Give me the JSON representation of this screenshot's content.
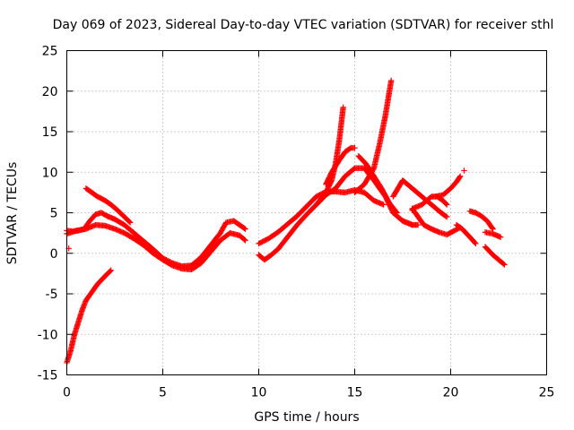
{
  "chart_data": {
    "type": "scatter",
    "title": "Day 069 of 2023, Sidereal Day-to-day VTEC variation (SDTVAR) for receiver sthl",
    "xlabel": "GPS time / hours",
    "ylabel": "SDTVAR / TECUs",
    "xlim": [
      0,
      25
    ],
    "ylim": [
      -15,
      25
    ],
    "xticks": [
      "0",
      "5",
      "10",
      "15",
      "20",
      "25"
    ],
    "yticks": [
      "25",
      "20",
      "15",
      "10",
      "5",
      "0",
      "-5",
      "-10",
      "-15"
    ],
    "xtick_values": [
      0,
      5,
      10,
      15,
      20,
      25
    ],
    "ytick_values": [
      25,
      20,
      15,
      10,
      5,
      0,
      -5,
      -10,
      -15
    ],
    "grid": true,
    "marker": "+",
    "series": [
      {
        "name": "SDTVAR",
        "color": "#ff0000",
        "tracks": [
          [
            [
              0.0,
              -13.5
            ],
            [
              0.2,
              -12.0
            ],
            [
              0.4,
              -10.0
            ],
            [
              0.6,
              -8.5
            ],
            [
              0.8,
              -7.0
            ],
            [
              1.0,
              -5.8
            ],
            [
              1.3,
              -4.8
            ],
            [
              1.6,
              -3.8
            ],
            [
              2.0,
              -2.8
            ],
            [
              2.3,
              -2.1
            ]
          ],
          [
            [
              0.0,
              2.8
            ],
            [
              0.3,
              2.7
            ],
            [
              0.6,
              2.8
            ],
            [
              0.9,
              3.0
            ],
            [
              1.2,
              4.0
            ],
            [
              1.5,
              4.8
            ],
            [
              1.8,
              5.0
            ],
            [
              2.1,
              4.6
            ],
            [
              2.5,
              4.2
            ],
            [
              3.0,
              3.5
            ],
            [
              3.5,
              2.5
            ],
            [
              4.0,
              1.5
            ],
            [
              4.5,
              0.5
            ],
            [
              5.0,
              -0.6
            ],
            [
              5.5,
              -1.2
            ],
            [
              6.0,
              -1.6
            ],
            [
              6.5,
              -1.5
            ],
            [
              7.0,
              -0.5
            ],
            [
              7.5,
              1.0
            ],
            [
              8.0,
              2.5
            ],
            [
              8.3,
              3.8
            ],
            [
              8.7,
              4.0
            ],
            [
              9.0,
              3.5
            ],
            [
              9.3,
              3.0
            ]
          ],
          [
            [
              0.0,
              2.4
            ],
            [
              0.5,
              2.8
            ],
            [
              1.0,
              3.0
            ],
            [
              1.5,
              3.5
            ],
            [
              2.0,
              3.4
            ],
            [
              2.5,
              3.0
            ],
            [
              3.0,
              2.5
            ],
            [
              3.5,
              1.8
            ],
            [
              4.0,
              1.0
            ],
            [
              4.5,
              0.0
            ],
            [
              5.0,
              -0.8
            ],
            [
              5.5,
              -1.5
            ],
            [
              6.0,
              -1.9
            ],
            [
              6.5,
              -2.0
            ],
            [
              7.0,
              -1.2
            ],
            [
              7.5,
              0.2
            ],
            [
              8.0,
              1.6
            ],
            [
              8.5,
              2.5
            ],
            [
              9.0,
              2.2
            ],
            [
              9.3,
              1.6
            ]
          ],
          [
            [
              1.0,
              8.0
            ],
            [
              1.3,
              7.5
            ],
            [
              1.6,
              7.0
            ],
            [
              2.0,
              6.5
            ],
            [
              2.3,
              6.0
            ],
            [
              2.6,
              5.4
            ],
            [
              3.0,
              4.5
            ],
            [
              3.3,
              3.8
            ]
          ],
          [
            [
              10.0,
              -0.2
            ],
            [
              10.3,
              -0.8
            ],
            [
              10.6,
              -0.3
            ],
            [
              11.0,
              0.5
            ],
            [
              11.5,
              2.0
            ],
            [
              12.0,
              3.5
            ],
            [
              12.5,
              4.8
            ],
            [
              13.0,
              6.0
            ],
            [
              13.5,
              7.2
            ],
            [
              14.0,
              8.0
            ],
            [
              14.5,
              9.5
            ],
            [
              15.0,
              10.5
            ],
            [
              15.5,
              10.5
            ],
            [
              16.0,
              9.0
            ],
            [
              16.3,
              8.0
            ],
            [
              16.6,
              7.0
            ],
            [
              17.0,
              5.0
            ],
            [
              17.5,
              4.0
            ],
            [
              18.0,
              3.5
            ]
          ],
          [
            [
              10.0,
              1.2
            ],
            [
              10.5,
              1.8
            ],
            [
              11.0,
              2.6
            ],
            [
              11.5,
              3.6
            ],
            [
              12.0,
              4.6
            ],
            [
              12.5,
              5.8
            ],
            [
              13.0,
              7.0
            ],
            [
              13.5,
              7.6
            ],
            [
              14.0,
              7.6
            ],
            [
              14.5,
              7.5
            ],
            [
              15.0,
              7.8
            ],
            [
              15.5,
              7.5
            ],
            [
              16.0,
              6.5
            ],
            [
              16.5,
              6.0
            ]
          ],
          [
            [
              13.0,
              6.0
            ],
            [
              13.5,
              7.5
            ],
            [
              13.8,
              9.0
            ],
            [
              14.0,
              11.0
            ],
            [
              14.2,
              14.0
            ],
            [
              14.4,
              18.0
            ]
          ],
          [
            [
              13.5,
              8.5
            ],
            [
              13.8,
              10.0
            ],
            [
              14.2,
              11.5
            ],
            [
              14.5,
              12.5
            ],
            [
              14.8,
              13.0
            ],
            [
              15.0,
              13.0
            ]
          ],
          [
            [
              15.0,
              7.5
            ],
            [
              15.5,
              8.5
            ],
            [
              16.0,
              10.5
            ],
            [
              16.3,
              13.5
            ],
            [
              16.6,
              17.0
            ],
            [
              16.9,
              21.3
            ]
          ],
          [
            [
              15.2,
              12.0
            ],
            [
              15.6,
              11.0
            ],
            [
              16.0,
              9.5
            ],
            [
              16.4,
              8.0
            ],
            [
              16.8,
              6.2
            ],
            [
              17.2,
              5.0
            ]
          ],
          [
            [
              17.0,
              7.0
            ],
            [
              17.5,
              9.0
            ],
            [
              18.0,
              8.0
            ],
            [
              18.5,
              7.0
            ],
            [
              19.0,
              6.0
            ],
            [
              19.5,
              5.0
            ],
            [
              19.8,
              4.5
            ]
          ],
          [
            [
              18.0,
              5.5
            ],
            [
              18.5,
              6.0
            ],
            [
              19.0,
              7.0
            ],
            [
              19.3,
              7.0
            ],
            [
              19.6,
              6.5
            ],
            [
              19.8,
              6.0
            ]
          ],
          [
            [
              18.0,
              5.5
            ],
            [
              18.3,
              4.5
            ],
            [
              18.6,
              3.5
            ],
            [
              19.0,
              3.0
            ],
            [
              19.4,
              2.6
            ],
            [
              19.8,
              2.3
            ],
            [
              20.2,
              2.8
            ],
            [
              20.5,
              3.2
            ]
          ],
          [
            [
              17.5,
              4.0
            ],
            [
              18.0,
              3.5
            ],
            [
              18.3,
              3.5
            ]
          ],
          [
            [
              19.2,
              7.0
            ],
            [
              19.6,
              7.2
            ],
            [
              20.0,
              8.0
            ],
            [
              20.3,
              8.8
            ],
            [
              20.5,
              9.5
            ]
          ],
          [
            [
              20.3,
              3.5
            ],
            [
              20.6,
              3.0
            ],
            [
              21.0,
              2.0
            ],
            [
              21.3,
              1.2
            ]
          ],
          [
            [
              21.0,
              5.2
            ],
            [
              21.3,
              5.0
            ],
            [
              21.6,
              4.6
            ],
            [
              21.9,
              4.0
            ],
            [
              22.2,
              3.0
            ]
          ],
          [
            [
              21.8,
              2.6
            ],
            [
              22.2,
              2.4
            ],
            [
              22.6,
              2.0
            ]
          ],
          [
            [
              21.8,
              0.8
            ],
            [
              22.2,
              -0.2
            ],
            [
              22.5,
              -0.8
            ],
            [
              22.8,
              -1.4
            ]
          ]
        ],
        "isolated": [
          [
            0.1,
            0.6
          ],
          [
            20.7,
            10.2
          ],
          [
            18.0,
            5.3
          ]
        ]
      }
    ]
  }
}
